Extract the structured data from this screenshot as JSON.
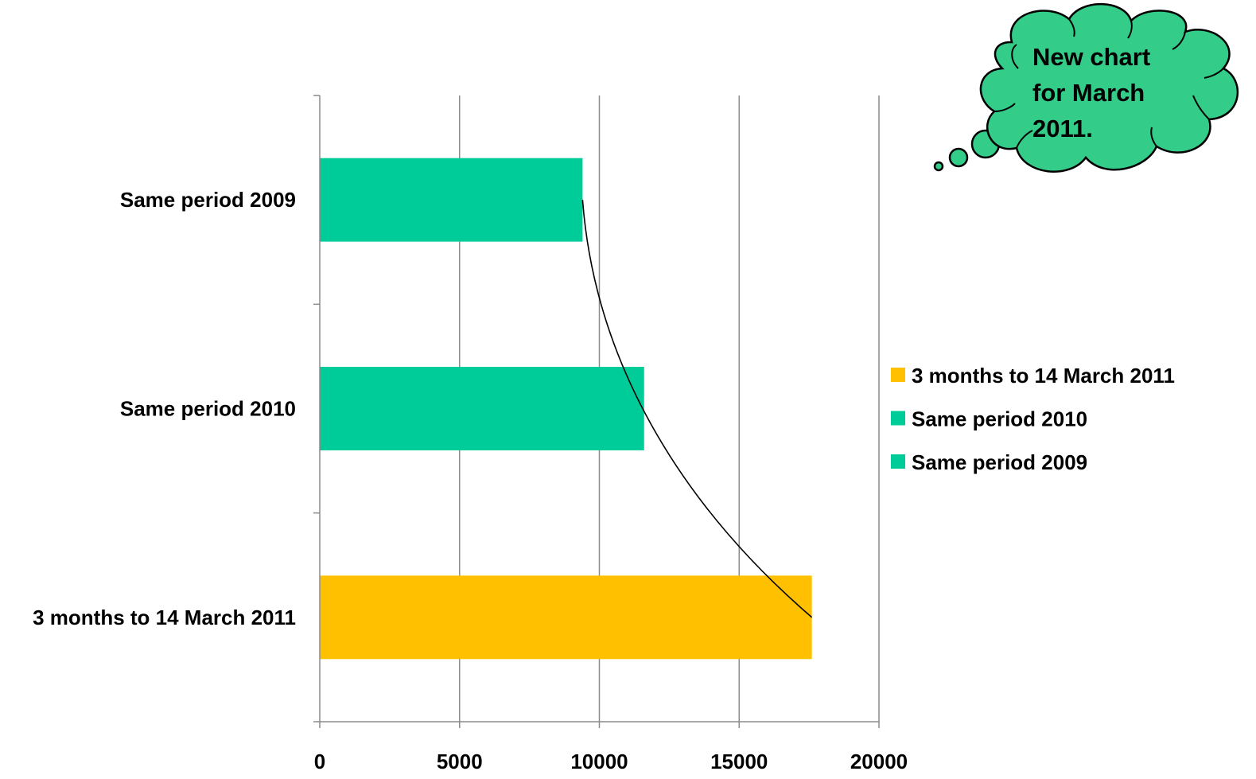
{
  "chart_data": {
    "type": "bar",
    "orientation": "horizontal",
    "categories": [
      "3 months to 14 March 2011",
      "Same period 2010",
      "Same period 2009"
    ],
    "values": [
      17600,
      11600,
      9400
    ],
    "colors": [
      "#FFC000",
      "#00CC99",
      "#00CC99"
    ],
    "xlim": [
      0,
      20000
    ],
    "xticks": [
      0,
      5000,
      10000,
      15000,
      20000
    ],
    "tick_labels": [
      "0",
      "5000",
      "10000",
      "15000",
      "20000"
    ],
    "grid": "vertical",
    "legend": {
      "position": "right",
      "entries": [
        {
          "label": "3 months to 14 March 2011",
          "color": "#FFC000"
        },
        {
          "label": "Same period 2010",
          "color": "#00CC99"
        },
        {
          "label": "Same period 2009",
          "color": "#00CC99"
        }
      ]
    },
    "annotation": {
      "shape": "thought-cloud",
      "color": "#33CC88",
      "lines": [
        "New chart",
        "for March",
        "2011."
      ]
    }
  }
}
